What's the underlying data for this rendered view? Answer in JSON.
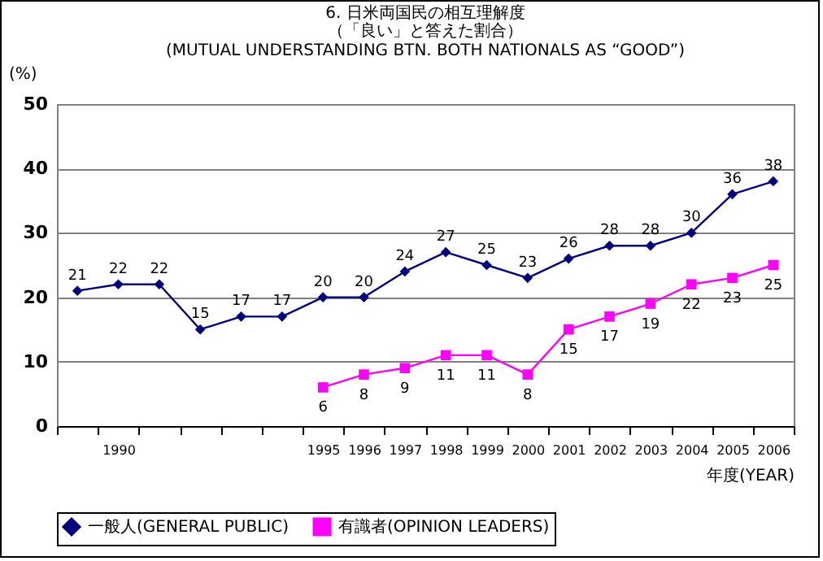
{
  "chart_data": {
    "type": "line",
    "title": "6. 日米両国民の相互理解度",
    "subtitle": "（「良い」と答えた割合）\n(MUTUAL UNDERSTANDING BTN. BOTH NATIONALS AS “GOOD”)",
    "ylabel": "(%)",
    "xlabel": "年度(YEAR)",
    "categories": [
      null,
      "1990",
      null,
      null,
      null,
      null,
      "1995",
      "1996",
      "1997",
      "1998",
      "1999",
      "2000",
      "2001",
      "2002",
      "2003",
      "2004",
      "2005",
      "2006"
    ],
    "series": [
      {
        "name": "一般人(GENERAL PUBLIC)",
        "color": "#000080",
        "marker": "diamond",
        "values": [
          21,
          22,
          22,
          15,
          17,
          17,
          20,
          20,
          24,
          27,
          25,
          23,
          26,
          28,
          28,
          30,
          36,
          38
        ]
      },
      {
        "name": "有識者(OPINION LEADERS)",
        "color": "#ff00ff",
        "marker": "square",
        "values": [
          null,
          null,
          null,
          null,
          null,
          null,
          6,
          8,
          9,
          11,
          11,
          8,
          15,
          17,
          19,
          22,
          23,
          25
        ]
      }
    ],
    "ylim": [
      0,
      50
    ],
    "yticks": [
      0,
      10,
      20,
      30,
      40,
      50
    ],
    "grid": "y",
    "legend": "bottom",
    "data_labels": true
  }
}
